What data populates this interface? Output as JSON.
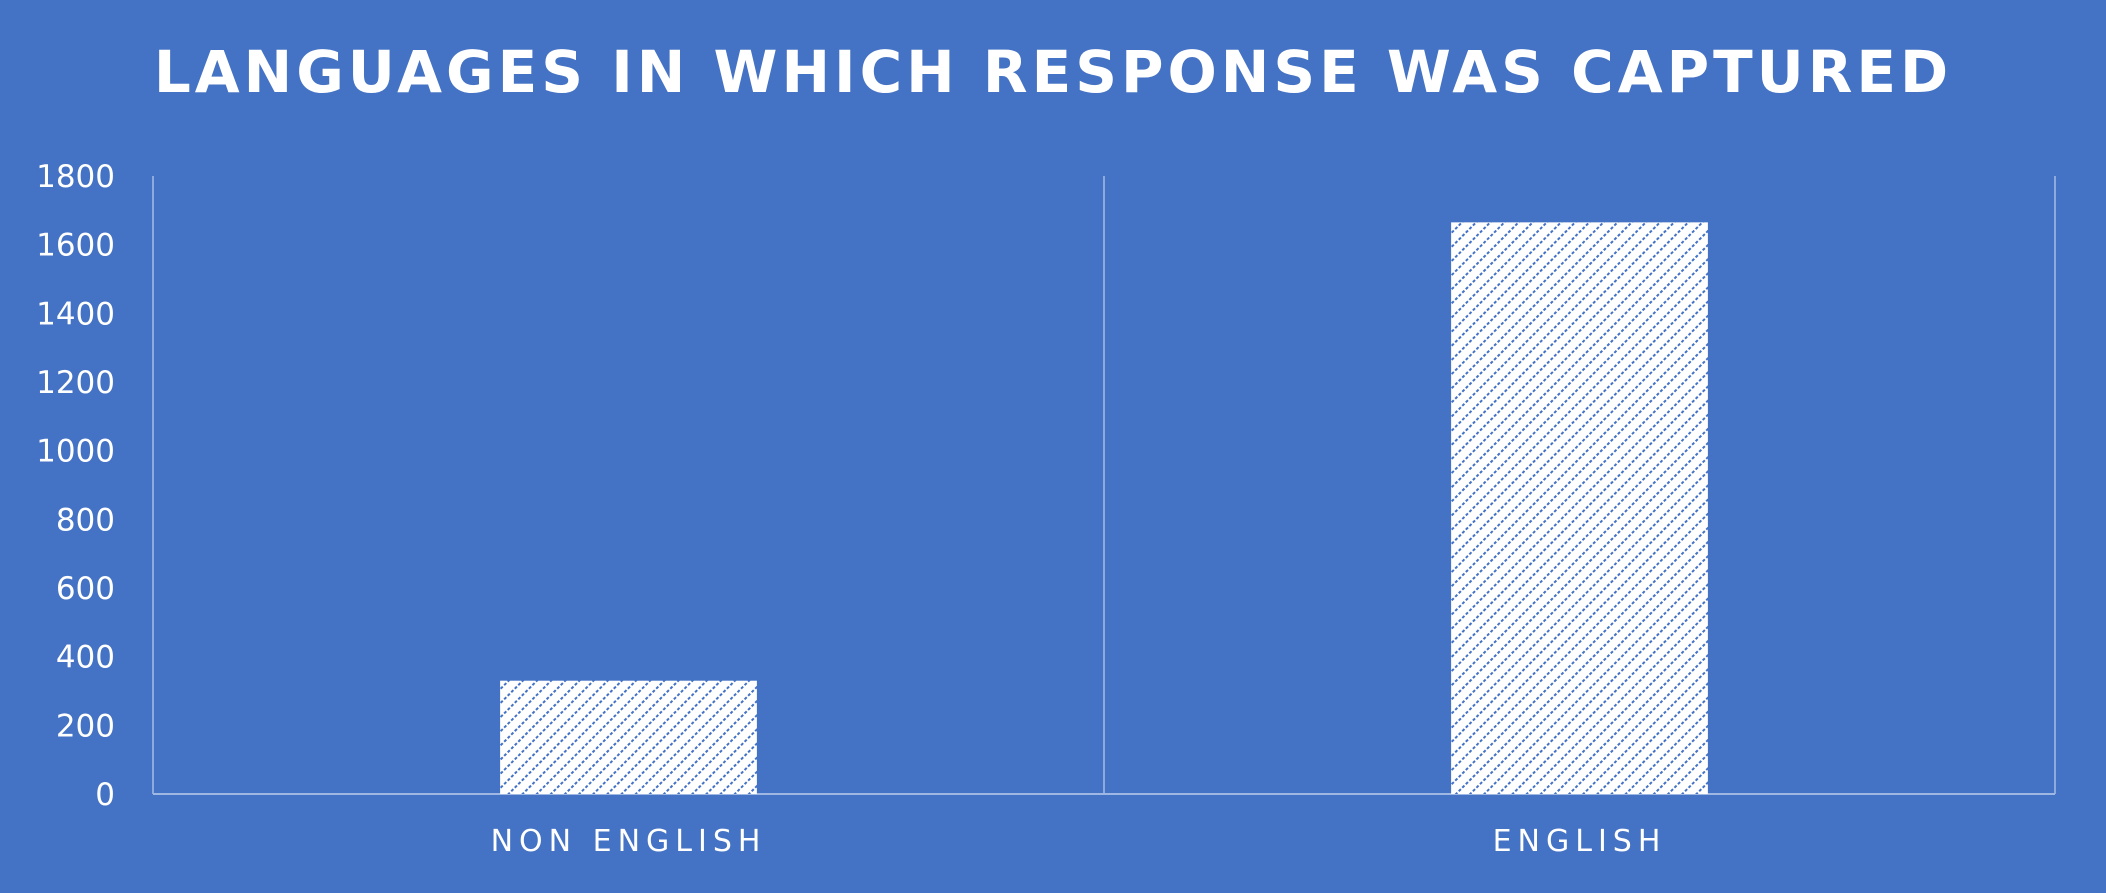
{
  "chart_data": {
    "type": "bar",
    "title": "LANGUAGES IN WHICH RESPONSE WAS CAPTURED",
    "categories": [
      "NON ENGLISH",
      "ENGLISH"
    ],
    "values": [
      330,
      1665
    ],
    "ylim": [
      0,
      1800
    ],
    "yticks": [
      0,
      200,
      400,
      600,
      800,
      1000,
      1200,
      1400,
      1600,
      1800
    ],
    "xlabel": "",
    "ylabel": "",
    "grid": false,
    "legend": "none",
    "colors": {
      "background": "#4472c4",
      "bar_fill": "#ffffff",
      "bar_pattern": "#4472c4",
      "text": "#ffffff"
    }
  }
}
